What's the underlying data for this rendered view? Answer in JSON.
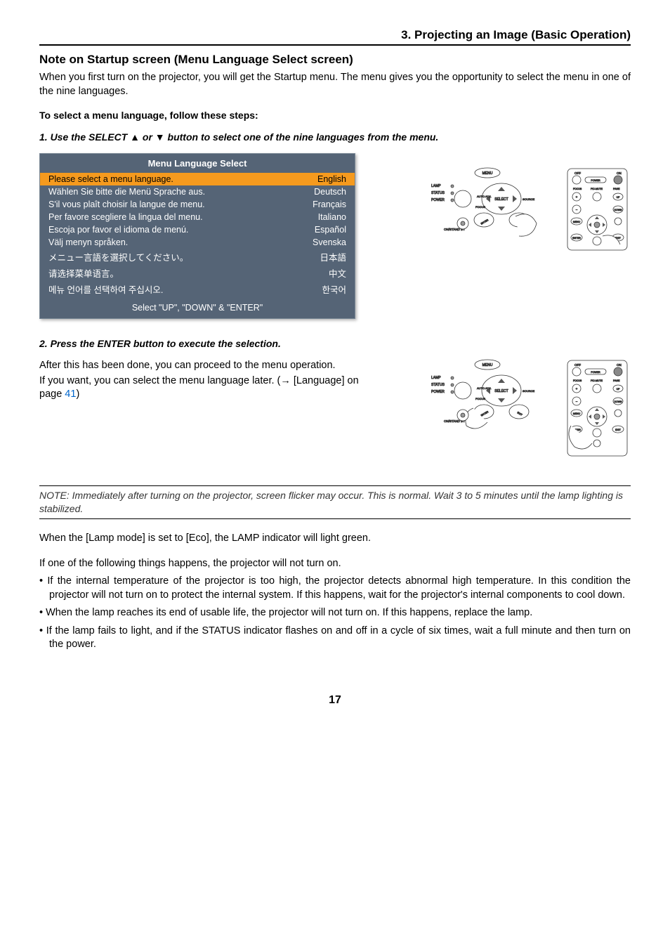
{
  "header": {
    "section_title": "3. Projecting an Image (Basic Operation)"
  },
  "title": "Note on Startup screen (Menu Language Select screen)",
  "intro": "When you first turn on the projector, you will get the Startup menu. The menu gives you the opportunity to select the menu in one of the nine languages.",
  "sub_heading": "To select a menu language, follow these steps:",
  "step1": "1. Use the SELECT ▲ or ▼ button to select one of the nine languages from the menu.",
  "menu": {
    "title": "Menu Language Select",
    "rows": [
      {
        "prompt": "Please select a menu language.",
        "lang": "English",
        "selected": true
      },
      {
        "prompt": "Wählen Sie bitte die Menü Sprache aus.",
        "lang": "Deutsch"
      },
      {
        "prompt": "S'il vous plaît choisir la langue de menu.",
        "lang": "Français"
      },
      {
        "prompt": "Per favore scegliere la lingua del menu.",
        "lang": "Italiano"
      },
      {
        "prompt": "Escoja por favor el idioma de menú.",
        "lang": "Español"
      },
      {
        "prompt": "Välj menyn språken.",
        "lang": "Svenska"
      },
      {
        "prompt": "メニュー言語を選択してください。",
        "lang": "日本語"
      },
      {
        "prompt": "请选择菜单语言。",
        "lang": "中文"
      },
      {
        "prompt": "메뉴 언어를 선택하여 주십시오.",
        "lang": "한국어"
      }
    ],
    "footer": "Select \"UP\", \"DOWN\" & \"ENTER\""
  },
  "panel_labels": {
    "menu": "MENU",
    "lamp": "LAMP",
    "status": "STATUS",
    "power": "POWER",
    "auto_adj": "AUTO ADJ.",
    "select": "SELECT",
    "source": "SOURCE",
    "focus": "FOCUS",
    "standby": "ON/STAND BY",
    "enter": "ENTER",
    "exit": "EXIT"
  },
  "remote_labels": {
    "off": "OFF",
    "on": "ON",
    "power": "POWER",
    "focus": "FOCUS",
    "pic_mute": "PIC-MUTE",
    "page": "PAGE",
    "up": "UP",
    "down": "DOWN",
    "menu": "MENU",
    "enter": "ENTER",
    "exit": "EXIT"
  },
  "step2": "2. Press the ENTER button to execute the selection.",
  "after1": "After this has been done, you can proceed to the menu operation.",
  "after2_a": "If you want, you can select the menu language later. (→ [Language] on page ",
  "after2_link": "41",
  "after2_b": ")",
  "note": "NOTE: Immediately after turning on the projector, screen flicker may occur. This is normal. Wait 3 to 5 minutes until the lamp lighting is stabilized.",
  "eco_line": "When the [Lamp mode] is set to [Eco], the LAMP indicator will light green.",
  "noton_line": "If one of the following things happens, the projector will not turn on.",
  "bullets": [
    "If the internal temperature of the projector is too high, the projector detects abnormal high temperature. In this condition the projector will not turn on to protect the internal system. If this happens, wait for the projector's internal components to cool down.",
    "When the lamp reaches its end of usable life, the projector will not turn on. If this happens, replace the lamp.",
    "If the lamp fails to light, and if the STATUS indicator flashes on and off in a cycle of six times, wait a full minute and then turn on the power."
  ],
  "page_number": "17",
  "colors": {
    "menu_bg": "#556476",
    "menu_selected_bg": "#f59a1e",
    "link": "#0066cc"
  }
}
